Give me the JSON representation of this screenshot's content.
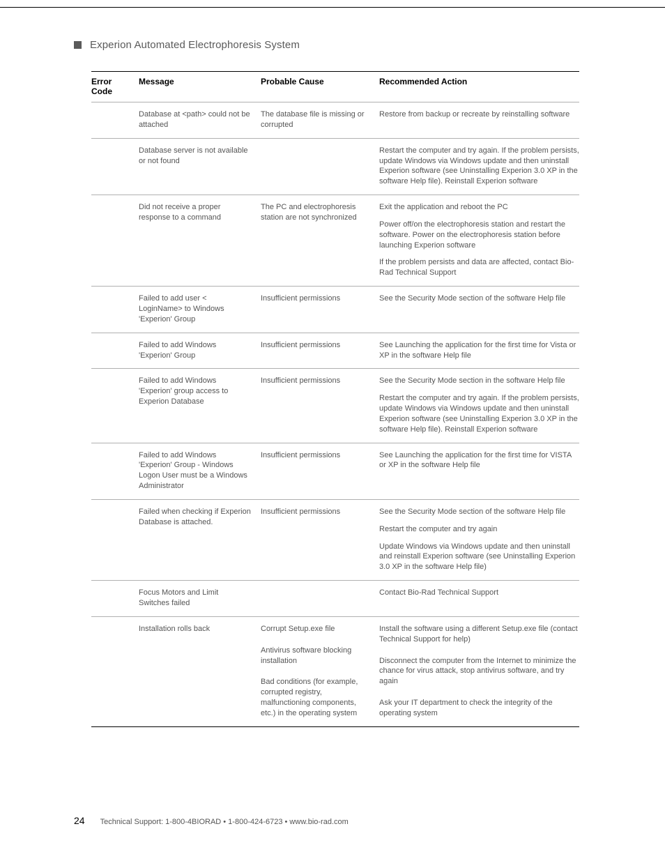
{
  "header": {
    "title": "Experion Automated Electrophoresis System"
  },
  "table": {
    "columns": {
      "code": "Error Code",
      "message": "Message",
      "cause": "Probable Cause",
      "action": "Recommended Action"
    },
    "rows": [
      {
        "message": "Database at <path> could not be attached",
        "cause": "The database file is missing or corrupted",
        "action": "Restore from backup or recreate by reinstalling software"
      },
      {
        "message": "Database server is not available or not found",
        "cause": "",
        "action": "Restart the computer and try again. If the problem persists, update Windows via Windows update and then uninstall Experion software (see Uninstalling Experion 3.0 XP in the software Help file). Reinstall Experion software"
      },
      {
        "message": "Did not receive a proper response to a command",
        "cause": "The PC and electrophoresis station are not synchronized",
        "action": "Exit the application and reboot the PC",
        "action2": "Power off/on the electrophoresis station and restart the software. Power on the electrophoresis station before launching Experion software",
        "action3": "If the problem persists and data are affected, contact Bio-Rad Technical Support"
      },
      {
        "message": "Failed to add user < LoginName> to Windows 'Experion' Group",
        "cause": "Insufficient permissions",
        "action": "See the Security Mode section of the software Help file"
      },
      {
        "message": "Failed to add Windows 'Experion' Group",
        "cause": "Insufficient permissions",
        "action": "See Launching the application for the first time for Vista or XP in the software Help file"
      },
      {
        "message": "Failed to add Windows 'Experion' group access to Experion Database",
        "cause": "Insufficient permissions",
        "action": "See the Security Mode section in the software Help file",
        "action2": "Restart the computer and try again. If the problem persists, update Windows via Windows update and then uninstall Experion software (see Uninstalling Experion 3.0 XP in the software Help file). Reinstall Experion software"
      },
      {
        "message": "Failed to add Windows 'Experion' Group - Windows Logon User must be a Windows Administrator",
        "cause": "Insufficient permissions",
        "action": "See Launching the application for the first time for VISTA or XP in the software Help file"
      },
      {
        "message": "Failed when checking if Experion Database is attached.",
        "cause": "Insufficient permissions",
        "action": "See the Security Mode section of the software Help file",
        "action2": "Restart the computer and try again",
        "action3": "Update Windows via Windows update and then uninstall and reinstall Experion software (see Uninstalling Experion 3.0 XP in the software Help file)"
      },
      {
        "message": "Focus Motors and Limit Switches failed",
        "cause": "",
        "action": "Contact Bio-Rad Technical Support"
      },
      {
        "message": "Installation rolls back",
        "cause": "Corrupt Setup.exe file",
        "action": "Install the software using a different Setup.exe file (contact Technical Support for help)",
        "sub": [
          {
            "cause": "Antivirus software blocking installation",
            "action": "Disconnect the computer from the Internet to minimize the chance for virus attack, stop antivirus software, and try again"
          },
          {
            "cause": "Bad conditions (for example, corrupted registry, malfunctioning components, etc.) in the operating system",
            "action": "Ask your IT department to check the integrity of the operating system"
          }
        ]
      }
    ]
  },
  "footer": {
    "page": "24",
    "text": "Technical Support: 1-800-4BIORAD • 1-800-424-6723 • www.bio-rad.com"
  }
}
